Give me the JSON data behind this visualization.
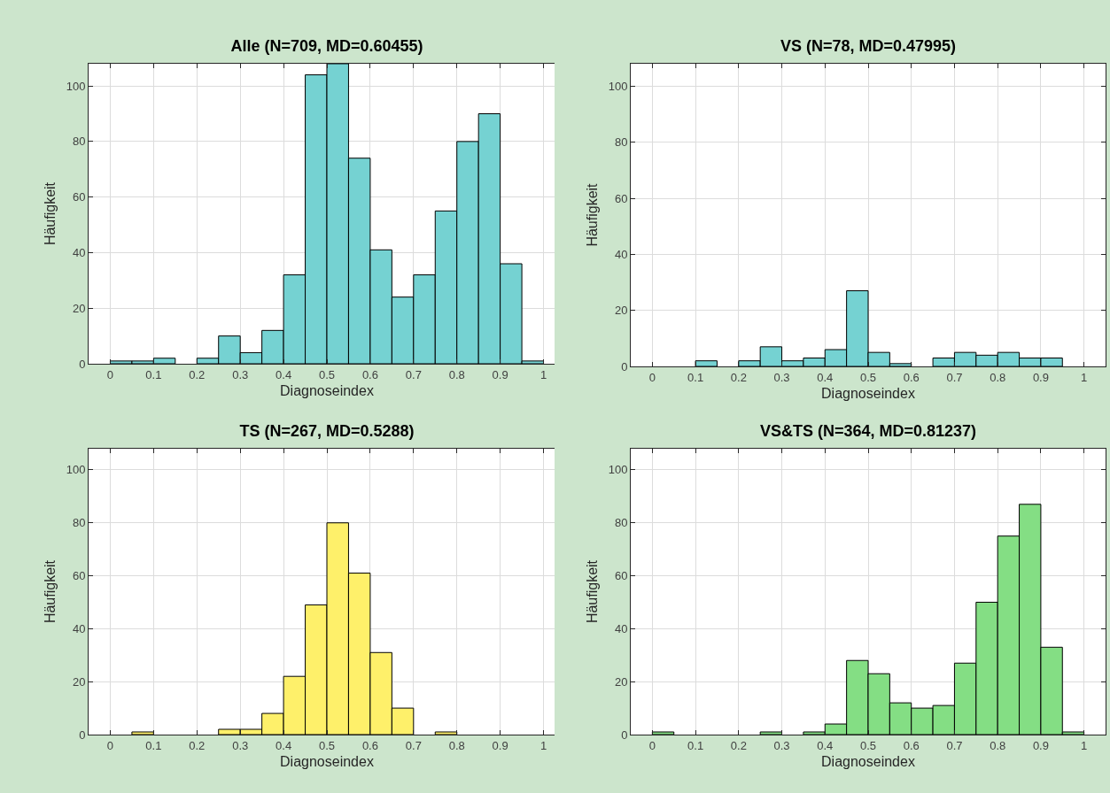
{
  "chart_data": [
    {
      "type": "histogram",
      "title": "Alle (N=709, MD=0.60455)",
      "xlabel": "Diagnoseindex",
      "ylabel": "Häufigkeit",
      "color": "#75d2d2",
      "grid": true,
      "bins": [
        0,
        0.05,
        0.1,
        0.15,
        0.2,
        0.25,
        0.3,
        0.35,
        0.4,
        0.45,
        0.5,
        0.55,
        0.6,
        0.65,
        0.7,
        0.75,
        0.8,
        0.85,
        0.9,
        0.95,
        1
      ],
      "values": [
        1,
        1,
        2,
        0,
        2,
        10,
        4,
        12,
        32,
        104,
        108,
        74,
        41,
        24,
        32,
        55,
        80,
        90,
        36,
        1
      ],
      "xlim": [
        -0.05,
        1.05
      ],
      "ylim": [
        0,
        108
      ],
      "xticks": [
        0,
        0.1,
        0.2,
        0.3,
        0.4,
        0.5,
        0.6,
        0.7,
        0.8,
        0.9,
        1
      ],
      "yticks": [
        0,
        20,
        40,
        60,
        80,
        100
      ]
    },
    {
      "type": "histogram",
      "title": "VS (N=78, MD=0.47995)",
      "xlabel": "Diagnoseindex",
      "ylabel": "Häufigkeit",
      "color": "#75d2d2",
      "grid": true,
      "bins": [
        0,
        0.05,
        0.1,
        0.15,
        0.2,
        0.25,
        0.3,
        0.35,
        0.4,
        0.45,
        0.5,
        0.55,
        0.6,
        0.65,
        0.7,
        0.75,
        0.8,
        0.85,
        0.9,
        0.95,
        1
      ],
      "values": [
        0,
        0,
        2,
        0,
        2,
        7,
        2,
        3,
        6,
        27,
        5,
        1,
        0,
        3,
        5,
        4,
        5,
        3,
        3,
        0
      ],
      "xlim": [
        -0.05,
        1.05
      ],
      "ylim": [
        0,
        108
      ],
      "xticks": [
        0,
        0.1,
        0.2,
        0.3,
        0.4,
        0.5,
        0.6,
        0.7,
        0.8,
        0.9,
        1
      ],
      "yticks": [
        0,
        20,
        40,
        60,
        80,
        100
      ]
    },
    {
      "type": "histogram",
      "title": "TS (N=267, MD=0.5288)",
      "xlabel": "Diagnoseindex",
      "ylabel": "Häufigkeit",
      "color": "#fef06a",
      "grid": true,
      "bins": [
        0,
        0.05,
        0.1,
        0.15,
        0.2,
        0.25,
        0.3,
        0.35,
        0.4,
        0.45,
        0.5,
        0.55,
        0.6,
        0.65,
        0.7,
        0.75,
        0.8,
        0.85,
        0.9,
        0.95,
        1
      ],
      "values": [
        0,
        1,
        0,
        0,
        0,
        2,
        2,
        8,
        22,
        49,
        80,
        61,
        31,
        10,
        0,
        1,
        0,
        0,
        0,
        0
      ],
      "xlim": [
        -0.05,
        1.05
      ],
      "ylim": [
        0,
        108
      ],
      "xticks": [
        0,
        0.1,
        0.2,
        0.3,
        0.4,
        0.5,
        0.6,
        0.7,
        0.8,
        0.9,
        1
      ],
      "yticks": [
        0,
        20,
        40,
        60,
        80,
        100
      ]
    },
    {
      "type": "histogram",
      "title": "VS&TS (N=364, MD=0.81237)",
      "xlabel": "Diagnoseindex",
      "ylabel": "Häufigkeit",
      "color": "#84de84",
      "grid": true,
      "bins": [
        0,
        0.05,
        0.1,
        0.15,
        0.2,
        0.25,
        0.3,
        0.35,
        0.4,
        0.45,
        0.5,
        0.55,
        0.6,
        0.65,
        0.7,
        0.75,
        0.8,
        0.85,
        0.9,
        0.95,
        1
      ],
      "values": [
        1,
        0,
        0,
        0,
        0,
        1,
        0,
        1,
        4,
        28,
        23,
        12,
        10,
        11,
        27,
        50,
        75,
        87,
        33,
        1
      ],
      "xlim": [
        -0.05,
        1.05
      ],
      "ylim": [
        0,
        108
      ],
      "xticks": [
        0,
        0.1,
        0.2,
        0.3,
        0.4,
        0.5,
        0.6,
        0.7,
        0.8,
        0.9,
        1
      ],
      "yticks": [
        0,
        20,
        40,
        60,
        80,
        100
      ]
    }
  ]
}
